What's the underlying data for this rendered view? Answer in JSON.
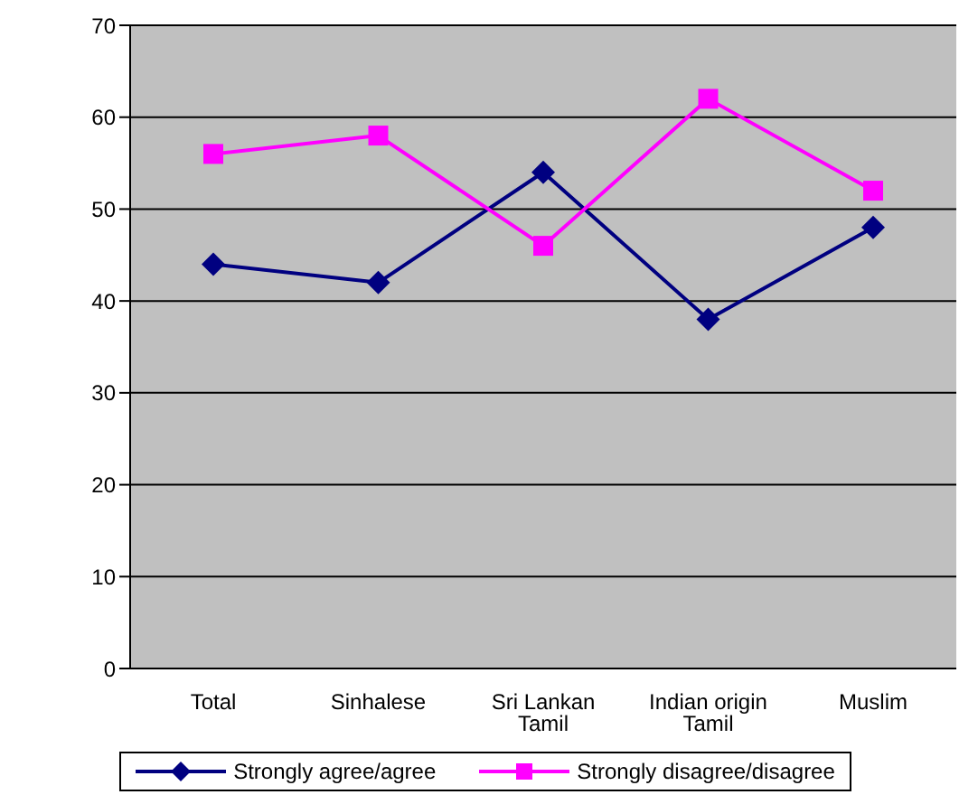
{
  "chart_data": {
    "type": "line",
    "categories": [
      "Total",
      "Sinhalese",
      "Sri Lankan Tamil",
      "Indian origin Tamil",
      "Muslim"
    ],
    "series": [
      {
        "name": "Strongly agree/agree",
        "color": "#000080",
        "marker": "diamond",
        "values": [
          44,
          42,
          54,
          38,
          48
        ]
      },
      {
        "name": "Strongly disagree/disagree",
        "color": "#ff00ff",
        "marker": "square",
        "values": [
          56,
          58,
          46,
          62,
          52
        ]
      }
    ],
    "ylim": [
      0,
      70
    ],
    "yticks": [
      0,
      10,
      20,
      30,
      40,
      50,
      60,
      70
    ],
    "grid": "y",
    "legend": "bottom"
  }
}
